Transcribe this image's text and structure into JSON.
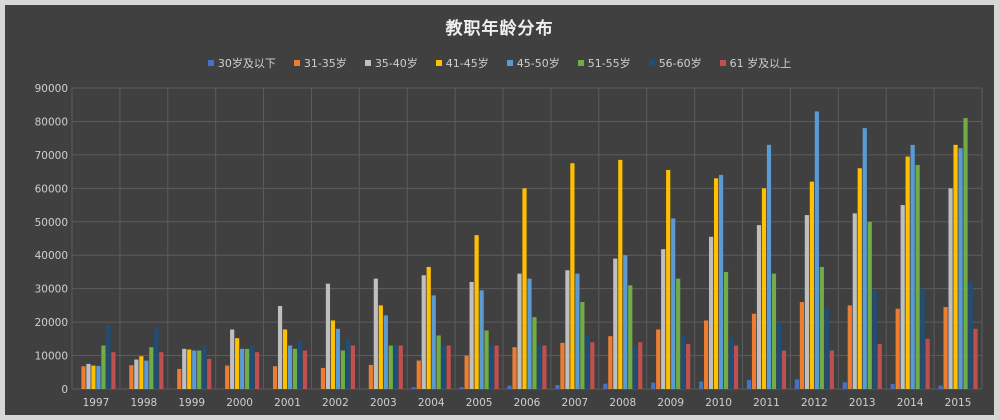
{
  "chart_data": {
    "type": "bar",
    "title": "教职年龄分布",
    "categories": [
      "1997",
      "1998",
      "1999",
      "2000",
      "2001",
      "2002",
      "2003",
      "2004",
      "2005",
      "2006",
      "2007",
      "2008",
      "2009",
      "2010",
      "2011",
      "2012",
      "2013",
      "2014",
      "2015"
    ],
    "ylim": [
      0,
      90000
    ],
    "yticks": [
      "0",
      "10000",
      "20000",
      "30000",
      "40000",
      "50000",
      "60000",
      "70000",
      "80000",
      "90000"
    ],
    "grid": true,
    "legend_position": "top",
    "series": [
      {
        "name": "30岁及以下",
        "color": "#4472c4",
        "values": [
          0,
          0,
          0,
          0,
          0,
          0,
          0,
          500,
          500,
          1000,
          1200,
          1600,
          1900,
          2200,
          2700,
          2900,
          2000,
          1500,
          1000
        ]
      },
      {
        "name": "31-35岁",
        "color": "#ed7d31",
        "values": [
          6800,
          7100,
          6000,
          7000,
          6800,
          6300,
          7200,
          8500,
          10000,
          12500,
          13800,
          15800,
          17800,
          20500,
          22500,
          26000,
          25000,
          24000,
          24500
        ]
      },
      {
        "name": "35-40岁",
        "color": "#bfbfbf",
        "values": [
          7500,
          8800,
          12000,
          17800,
          24800,
          31500,
          33000,
          34000,
          32000,
          34500,
          35500,
          39000,
          41800,
          45500,
          49000,
          52000,
          52500,
          55000,
          60000
        ]
      },
      {
        "name": "41-45岁",
        "color": "#ffc000",
        "values": [
          7000,
          9800,
          11800,
          15200,
          17800,
          20500,
          25000,
          36500,
          46000,
          60000,
          67500,
          68500,
          65500,
          63000,
          60000,
          62000,
          66000,
          69500,
          73000
        ]
      },
      {
        "name": "45-50岁",
        "color": "#5b9bd5",
        "values": [
          6900,
          8500,
          11500,
          12000,
          13000,
          18000,
          22000,
          28000,
          29500,
          33000,
          34500,
          40000,
          51000,
          64000,
          73000,
          83000,
          78000,
          73000,
          72000
        ]
      },
      {
        "name": "51-55岁",
        "color": "#70ad47",
        "values": [
          13000,
          12500,
          11500,
          12000,
          12000,
          11500,
          13000,
          16000,
          17500,
          21500,
          26000,
          31000,
          33000,
          35000,
          34500,
          36500,
          50000,
          67000,
          81000
        ]
      },
      {
        "name": "56-60岁",
        "color": "#1f4e79",
        "values": [
          19000,
          18500,
          13000,
          13000,
          14500,
          15000,
          13000,
          13000,
          13000,
          13000,
          16000,
          13000,
          16000,
          15500,
          20000,
          24000,
          29500,
          30000,
          32000
        ]
      },
      {
        "name": "61 岁及以上",
        "color": "#c0504d",
        "values": [
          11000,
          11000,
          9000,
          11000,
          11500,
          13000,
          13000,
          13000,
          13000,
          13000,
          14000,
          14000,
          13500,
          13000,
          11500,
          11500,
          13500,
          15000,
          18000
        ]
      }
    ]
  }
}
